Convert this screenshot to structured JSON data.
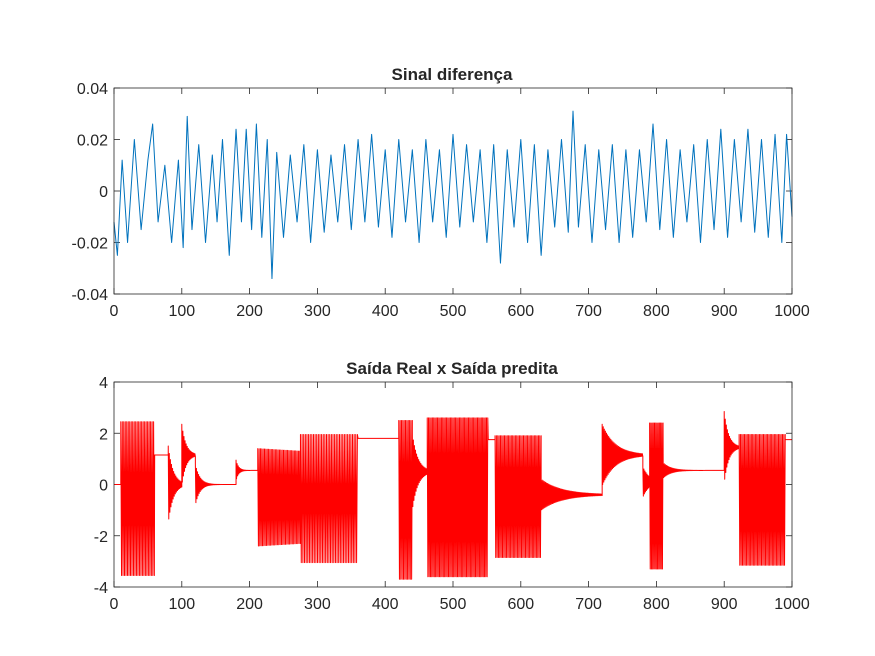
{
  "chart_data": [
    {
      "type": "line",
      "title": "Sinal diferença",
      "xlabel": "",
      "ylabel": "",
      "xlim": [
        0,
        1000
      ],
      "ylim": [
        -0.04,
        0.04
      ],
      "x_ticks": [
        "0",
        "100",
        "200",
        "300",
        "400",
        "500",
        "600",
        "700",
        "800",
        "900",
        "1000"
      ],
      "y_ticks": [
        "0.04",
        "0.02",
        "0",
        "-0.02",
        "-0.04"
      ],
      "grid": false,
      "color": "#0072BD",
      "series": [
        {
          "x": [
            0,
            5,
            12,
            20,
            30,
            40,
            50,
            57,
            65,
            75,
            85,
            95,
            102,
            108,
            115,
            125,
            135,
            145,
            152,
            160,
            170,
            180,
            188,
            195,
            203,
            210,
            218,
            226,
            233,
            240,
            250,
            260,
            270,
            280,
            290,
            300,
            310,
            320,
            330,
            340,
            350,
            360,
            370,
            380,
            390,
            400,
            410,
            420,
            430,
            440,
            450,
            460,
            470,
            480,
            490,
            500,
            510,
            520,
            530,
            540,
            550,
            560,
            570,
            580,
            590,
            600,
            610,
            620,
            630,
            640,
            650,
            660,
            670,
            677,
            685,
            695,
            705,
            715,
            725,
            735,
            745,
            755,
            765,
            775,
            785,
            795,
            805,
            815,
            825,
            835,
            845,
            855,
            865,
            875,
            885,
            895,
            905,
            915,
            925,
            935,
            945,
            955,
            965,
            975,
            985,
            992,
            1000
          ],
          "values": [
            -0.012,
            -0.025,
            0.012,
            -0.02,
            0.02,
            -0.015,
            0.012,
            0.026,
            -0.012,
            0.01,
            -0.02,
            0.012,
            -0.022,
            0.029,
            -0.015,
            0.018,
            -0.02,
            0.014,
            -0.012,
            0.02,
            -0.025,
            0.024,
            -0.012,
            0.024,
            -0.015,
            0.026,
            -0.018,
            0.02,
            -0.034,
            0.015,
            -0.018,
            0.014,
            -0.012,
            0.018,
            -0.02,
            0.016,
            -0.016,
            0.014,
            -0.012,
            0.018,
            -0.015,
            0.02,
            -0.012,
            0.022,
            -0.014,
            0.016,
            -0.018,
            0.02,
            -0.012,
            0.016,
            -0.02,
            0.02,
            -0.012,
            0.016,
            -0.018,
            0.022,
            -0.014,
            0.018,
            -0.012,
            0.016,
            -0.02,
            0.018,
            -0.028,
            0.016,
            -0.014,
            0.02,
            -0.02,
            0.018,
            -0.025,
            0.016,
            -0.014,
            0.02,
            -0.016,
            0.031,
            -0.014,
            0.018,
            -0.02,
            0.016,
            -0.015,
            0.018,
            -0.02,
            0.016,
            -0.018,
            0.016,
            -0.012,
            0.026,
            -0.015,
            0.02,
            -0.018,
            0.016,
            -0.012,
            0.018,
            -0.02,
            0.02,
            -0.015,
            0.024,
            -0.018,
            0.02,
            -0.012,
            0.024,
            -0.016,
            0.02,
            -0.018,
            0.022,
            -0.02,
            0.022,
            -0.01
          ]
        }
      ]
    },
    {
      "type": "line",
      "title": "Saída Real x Saída predita",
      "xlabel": "",
      "ylabel": "",
      "xlim": [
        0,
        1000
      ],
      "ylim": [
        -4,
        4
      ],
      "x_ticks": [
        "0",
        "100",
        "200",
        "300",
        "400",
        "500",
        "600",
        "700",
        "800",
        "900",
        "1000"
      ],
      "y_ticks": [
        "4",
        "2",
        "0",
        "-2",
        "-4"
      ],
      "grid": false,
      "color": "#FF0000",
      "segments": [
        {
          "type": "const",
          "x0": 0,
          "x1": 10,
          "y": 0.0
        },
        {
          "type": "osc",
          "x0": 10,
          "x1": 60,
          "hi": 2.45,
          "lo": -3.55,
          "step": 2.2
        },
        {
          "type": "decay",
          "x0": 60,
          "x1": 80,
          "center": 1.15,
          "amp0": 0.0,
          "amp1": 0.0,
          "step": 3
        },
        {
          "type": "decay",
          "x0": 80,
          "x1": 100,
          "center": 0.0,
          "amp0": 1.5,
          "amp1": 0.1,
          "step": 1.6
        },
        {
          "type": "decay",
          "x0": 100,
          "x1": 120,
          "center": 1.15,
          "amp0": 1.2,
          "amp1": 0.05,
          "step": 1.6
        },
        {
          "type": "decay",
          "x0": 120,
          "x1": 180,
          "center": 0.0,
          "amp0": 0.8,
          "amp1": 0.0,
          "step": 1.6
        },
        {
          "type": "decay",
          "x0": 180,
          "x1": 212,
          "center": 0.55,
          "amp0": 0.4,
          "amp1": 0.0,
          "step": 1.6
        },
        {
          "type": "decay",
          "x0": 212,
          "x1": 275,
          "center": -0.5,
          "amp0": 1.9,
          "amp1": 1.8,
          "step": 2
        },
        {
          "type": "osc",
          "x0": 275,
          "x1": 360,
          "hi": 1.95,
          "lo": -3.05,
          "step": 2.4
        },
        {
          "type": "const",
          "x0": 360,
          "x1": 420,
          "y": 1.8
        },
        {
          "type": "osc",
          "x0": 420,
          "x1": 440,
          "hi": 2.5,
          "lo": -3.7,
          "step": 2
        },
        {
          "type": "decay",
          "x0": 440,
          "x1": 462,
          "center": 0.5,
          "amp0": 1.5,
          "amp1": 0.1,
          "step": 1.6
        },
        {
          "type": "osc",
          "x0": 462,
          "x1": 552,
          "hi": 2.6,
          "lo": -3.6,
          "step": 1.9
        },
        {
          "type": "const",
          "x0": 552,
          "x1": 562,
          "y": 1.75
        },
        {
          "type": "osc",
          "x0": 562,
          "x1": 630,
          "hi": 1.9,
          "lo": -2.85,
          "step": 2
        },
        {
          "type": "decay",
          "x0": 630,
          "x1": 720,
          "center": -0.4,
          "amp0": 0.6,
          "amp1": 0.03,
          "step": 1.6
        },
        {
          "type": "decay",
          "x0": 720,
          "x1": 780,
          "center": 1.15,
          "amp0": 1.2,
          "amp1": 0.05,
          "step": 1.6
        },
        {
          "type": "decay",
          "x0": 780,
          "x1": 790,
          "center": 0.1,
          "amp0": 0.6,
          "amp1": 0.2,
          "step": 1.6
        },
        {
          "type": "osc",
          "x0": 790,
          "x1": 810,
          "hi": 2.4,
          "lo": -3.3,
          "step": 1.8
        },
        {
          "type": "decay",
          "x0": 810,
          "x1": 900,
          "center": 0.55,
          "amp0": 0.3,
          "amp1": 0.0,
          "step": 1.6
        },
        {
          "type": "decay",
          "x0": 900,
          "x1": 922,
          "center": 1.45,
          "amp0": 1.4,
          "amp1": 0.05,
          "step": 1.6
        },
        {
          "type": "osc",
          "x0": 922,
          "x1": 990,
          "hi": 1.95,
          "lo": -3.15,
          "step": 2
        },
        {
          "type": "const",
          "x0": 990,
          "x1": 1000,
          "y": 1.75
        }
      ]
    }
  ]
}
